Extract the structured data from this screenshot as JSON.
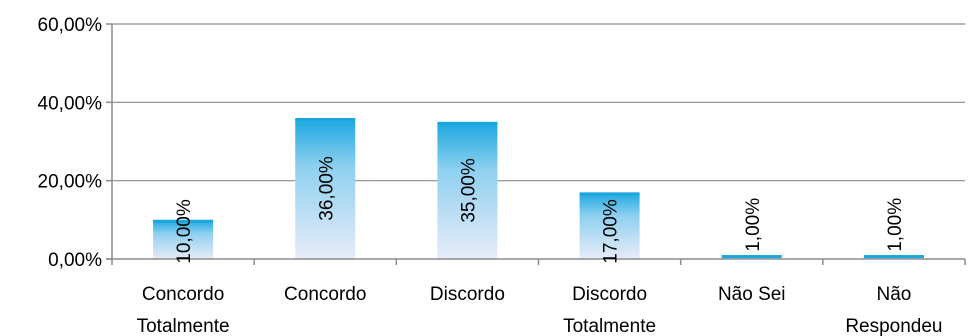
{
  "chart_data": {
    "type": "bar",
    "categories": [
      [
        "Concordo",
        "Totalmente"
      ],
      [
        "Concordo"
      ],
      [
        "Discordo"
      ],
      [
        "Discordo",
        "Totalmente"
      ],
      [
        "Não Sei"
      ],
      [
        "Não",
        "Respondeu"
      ]
    ],
    "values": [
      10,
      36,
      35,
      17,
      1,
      1
    ],
    "data_labels": [
      "10,00%",
      "36,00%",
      "35,00%",
      "17,00%",
      "1,00%",
      "1,00%"
    ],
    "y_ticks": [
      {
        "value": 0,
        "label": "0,00%"
      },
      {
        "value": 20,
        "label": "20,00%"
      },
      {
        "value": 40,
        "label": "40,00%"
      },
      {
        "value": 60,
        "label": "60,00%"
      }
    ],
    "ylim": [
      0,
      60
    ],
    "grid": true,
    "legend": "none",
    "colors": {
      "bar_top": "#1aa7e0",
      "bar_bottom": "#e8ecf8",
      "axis": "#8c8c8c"
    }
  }
}
